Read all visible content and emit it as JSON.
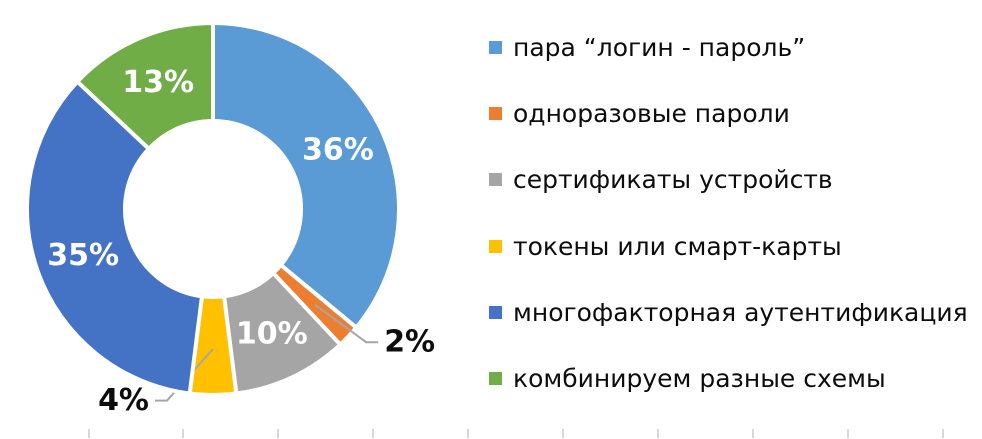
{
  "chart_data": {
    "type": "pie",
    "subtype": "donut",
    "title": "",
    "direction": "clockwise",
    "start_angle_deg": 0,
    "donut_hole_ratio": 0.47,
    "legend_position": "right",
    "inside_label_color": "#ffffff",
    "outside_label_color": "#0d0d0d",
    "slices": [
      {
        "label": "пара “логин - пароль”",
        "value": 36,
        "pct_label": "36%",
        "color": "#5B9BD5",
        "label_placement": "inside"
      },
      {
        "label": "одноразовые пароли",
        "value": 2,
        "pct_label": "2%",
        "color": "#ED7D31",
        "label_placement": "outside"
      },
      {
        "label": "сертификаты устройств",
        "value": 10,
        "pct_label": "10%",
        "color": "#A5A5A5",
        "label_placement": "inside"
      },
      {
        "label": "токены или смарт-карты",
        "value": 4,
        "pct_label": "4%",
        "color": "#FFC000",
        "label_placement": "outside"
      },
      {
        "label": "многофакторная аутентификация",
        "value": 35,
        "pct_label": "35%",
        "color": "#4472C4",
        "label_placement": "inside"
      },
      {
        "label": "комбинируем разные схемы",
        "value": 13,
        "pct_label": "13%",
        "color": "#70AD47",
        "label_placement": "inside"
      }
    ]
  }
}
